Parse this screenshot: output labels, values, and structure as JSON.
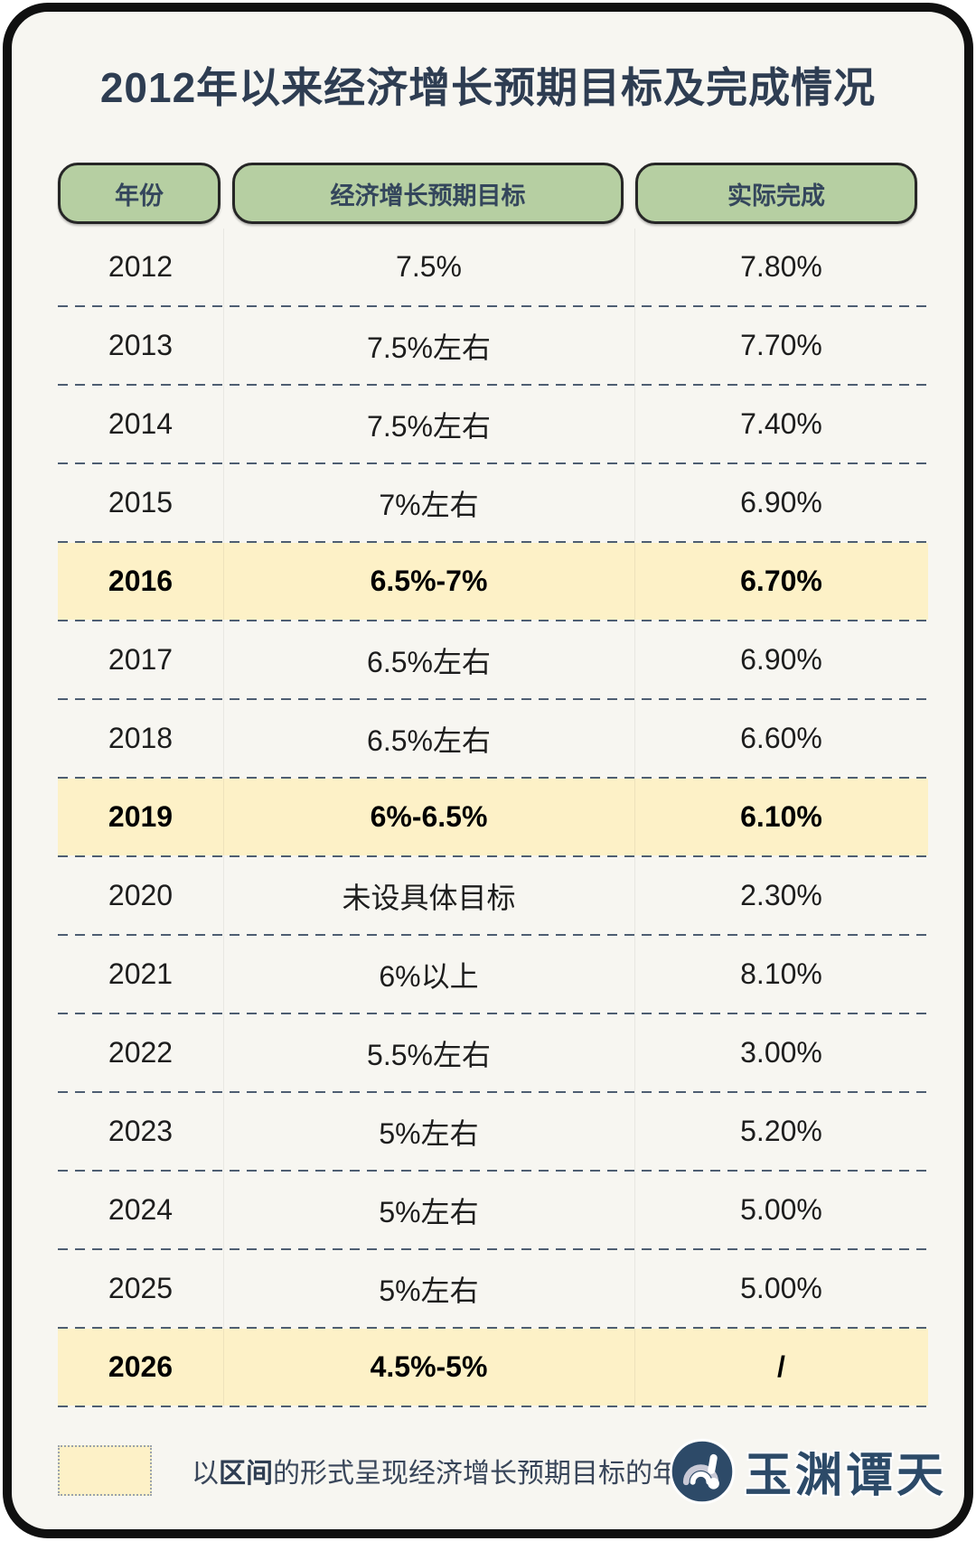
{
  "title": "2012年以来经济增长预期目标及完成情况",
  "chart_data": {
    "type": "table",
    "title": "2012年以来经济增长预期目标及完成情况",
    "columns": [
      "年份",
      "经济增长预期目标",
      "实际完成"
    ],
    "rows": [
      [
        "2012",
        "7.5%",
        "7.80%"
      ],
      [
        "2013",
        "7.5%左右",
        "7.70%"
      ],
      [
        "2014",
        "7.5%左右",
        "7.40%"
      ],
      [
        "2015",
        "7%左右",
        "6.90%"
      ],
      [
        "2016",
        "6.5%-7%",
        "6.70%"
      ],
      [
        "2017",
        "6.5%左右",
        "6.90%"
      ],
      [
        "2018",
        "6.5%左右",
        "6.60%"
      ],
      [
        "2019",
        "6%-6.5%",
        "6.10%"
      ],
      [
        "2020",
        "未设具体目标",
        "2.30%"
      ],
      [
        "2021",
        "6%以上",
        "8.10%"
      ],
      [
        "2022",
        "5.5%左右",
        "3.00%"
      ],
      [
        "2023",
        "5%左右",
        "5.20%"
      ],
      [
        "2024",
        "5%左右",
        "5.00%"
      ],
      [
        "2025",
        "5%左右",
        "5.00%"
      ],
      [
        "2026",
        "4.5%-5%",
        "/"
      ]
    ],
    "highlighted_rows": [
      4,
      7,
      14
    ],
    "highlight_meaning": "以区间的形式呈现经济增长预期目标的年份"
  },
  "legend": {
    "prefix": "以",
    "bold": "区间",
    "suffix": "的形式呈现经济增长预期目标的年份"
  },
  "brand": {
    "name": "玉渊谭天"
  },
  "colors": {
    "highlight": "#fdf1c7",
    "header_green": "#b6cfa2",
    "title_navy": "#2e3d52",
    "dash": "#4e5e72",
    "brand_navy": "#2c4a68"
  }
}
